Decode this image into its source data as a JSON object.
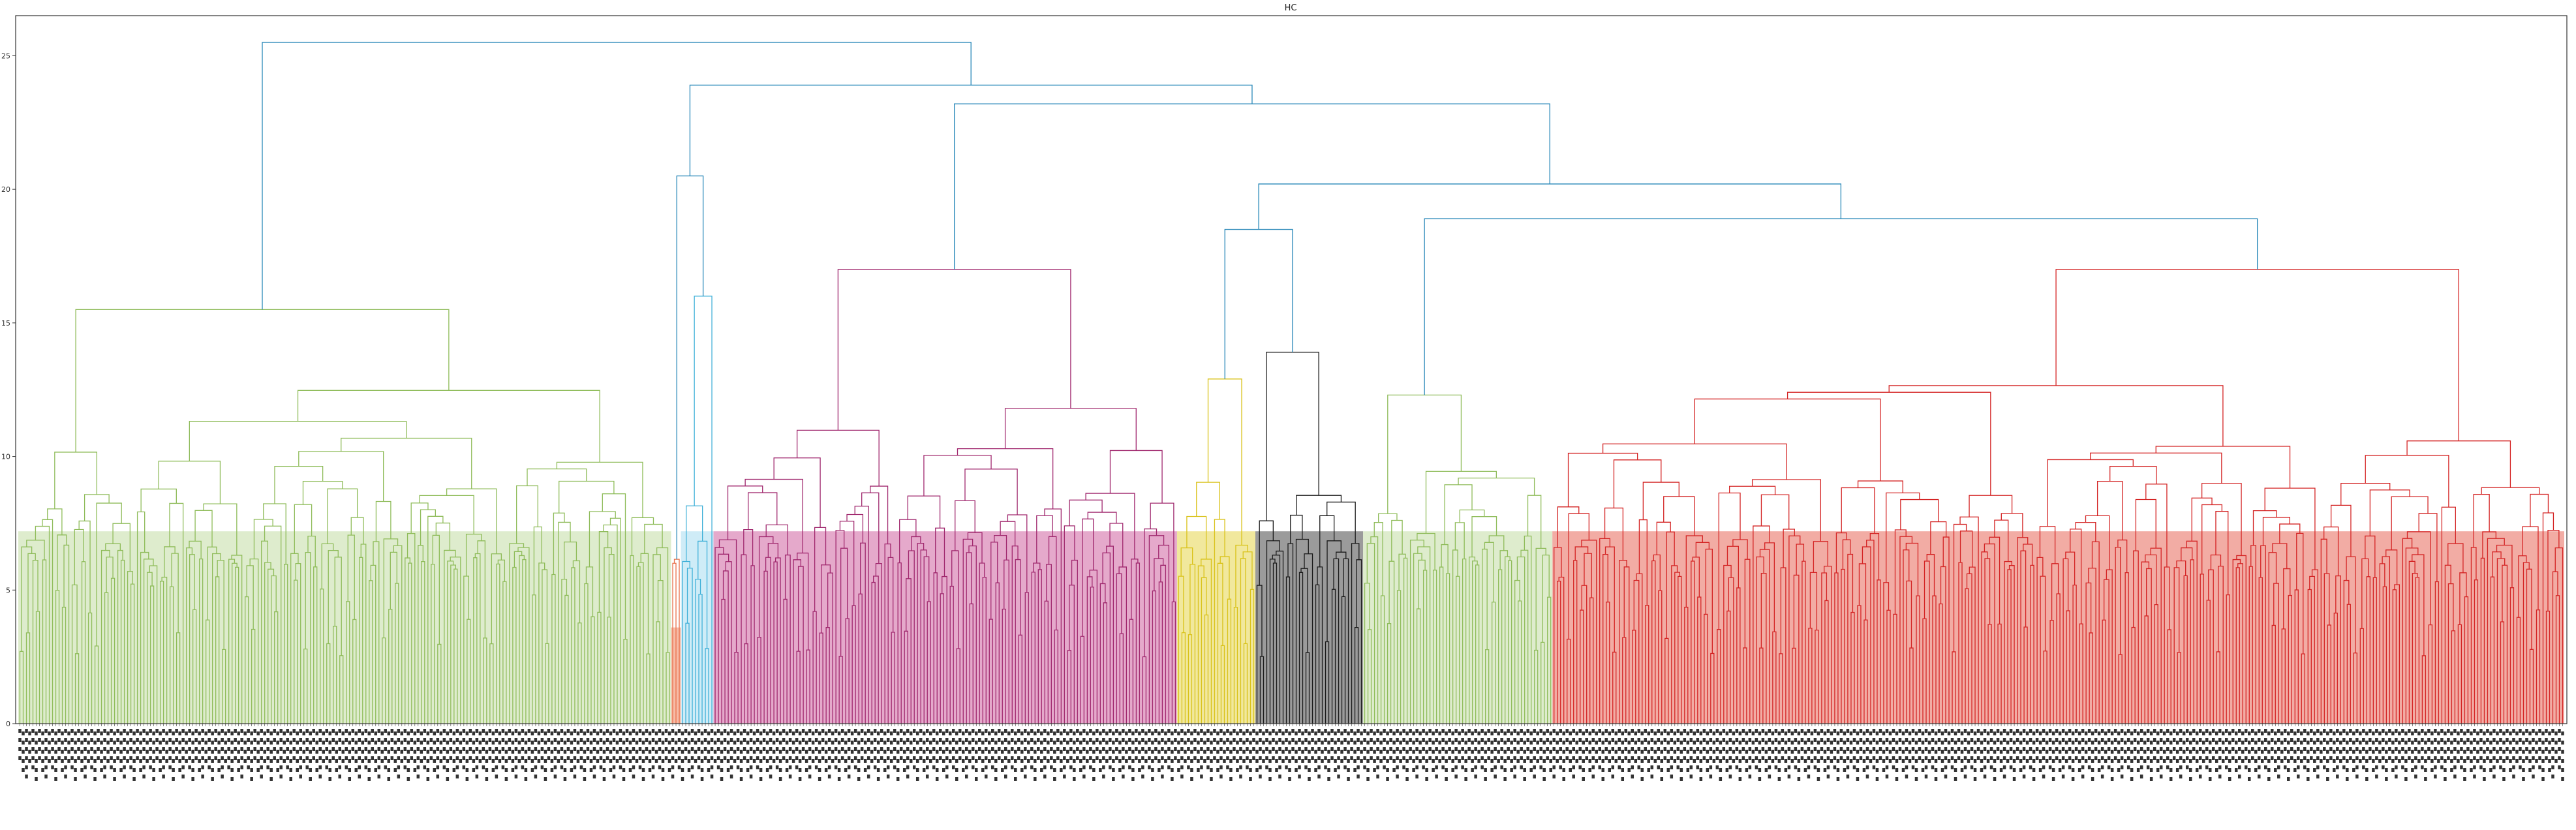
{
  "chart_data": {
    "type": "dendrogram",
    "title": "HC",
    "xlabel": "",
    "ylabel": "",
    "ylim": [
      0,
      26.5
    ],
    "yticks": [
      0,
      5,
      10,
      15,
      20,
      25
    ],
    "grid": false,
    "legend": "none",
    "leaf_count": 780,
    "cluster_colors": {
      "green": "#8fbc5a",
      "orange": "#e8704a",
      "cyan": "#3fb0d8",
      "magenta": "#a0286e",
      "yellow": "#d9c21a",
      "black": "#1a1a1a",
      "red": "#d42424",
      "link": "#2787b8"
    },
    "fill_colors": {
      "green": "#d3e6bc",
      "orange": "#f4a48a",
      "cyan": "#bfe6f4",
      "magenta": "#dc8cba",
      "yellow": "#ece07c",
      "black": "#7a7a7a",
      "red": "#ee9086"
    },
    "clusters": [
      {
        "color": "green",
        "leaves": 200,
        "top_height": 15.5
      },
      {
        "color": "orange",
        "leaves": 3,
        "top_height": 4.0
      },
      {
        "color": "cyan",
        "leaves": 10,
        "top_height": 16.0
      },
      {
        "color": "magenta",
        "leaves": 142,
        "top_height": 17.0
      },
      {
        "color": "yellow",
        "leaves": 24,
        "top_height": 12.9
      },
      {
        "color": "black",
        "leaves": 33,
        "top_height": 13.9
      },
      {
        "color": "green",
        "leaves": 58,
        "top_height": 12.3
      },
      {
        "color": "red",
        "leaves": 310,
        "top_height": 17.0
      }
    ],
    "upper_links": [
      {
        "between": [
          "orange",
          "cyan"
        ],
        "height": 20.5
      },
      {
        "between": [
          "yellow",
          "black"
        ],
        "height": 18.5
      },
      {
        "between": [
          "green-2",
          "red"
        ],
        "height": 18.9
      },
      {
        "between": [
          "yellow+black",
          "green-2+red"
        ],
        "height": 20.2
      },
      {
        "between": [
          "magenta",
          "yellow..red"
        ],
        "height": 23.2
      },
      {
        "between": [
          "orange+cyan",
          "magenta..red"
        ],
        "height": 23.9
      },
      {
        "between": [
          "green-1",
          "orange..red"
        ],
        "height": 25.5
      }
    ]
  }
}
